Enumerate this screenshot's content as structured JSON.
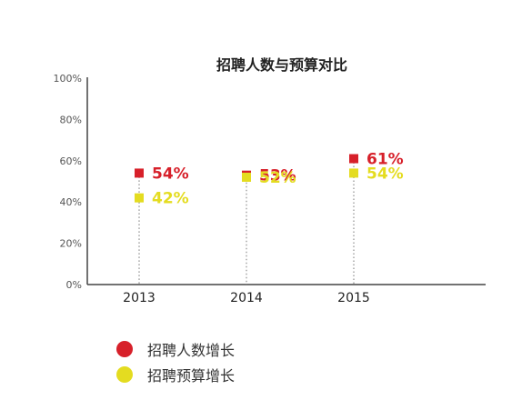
{
  "chart_data": {
    "type": "scatter",
    "title": "招聘人数与预算对比",
    "categories": [
      "2013",
      "2014",
      "2015"
    ],
    "series": [
      {
        "name": "招聘人数增长",
        "values": [
          54,
          53,
          61
        ],
        "labels": [
          "54%",
          "53%",
          "61%"
        ],
        "color": "#d7202a"
      },
      {
        "name": "招聘预算增长",
        "values": [
          42,
          52,
          54
        ],
        "labels": [
          "42%",
          "52%",
          "54%"
        ],
        "color": "#e4dc20"
      }
    ],
    "ylim": [
      0,
      100
    ],
    "yticks": [
      "0%",
      "20%",
      "40%",
      "60%",
      "80%",
      "100%"
    ],
    "ytick_values": [
      0,
      20,
      40,
      60,
      80,
      100
    ],
    "grid": false,
    "legend_position": "bottom-left"
  }
}
